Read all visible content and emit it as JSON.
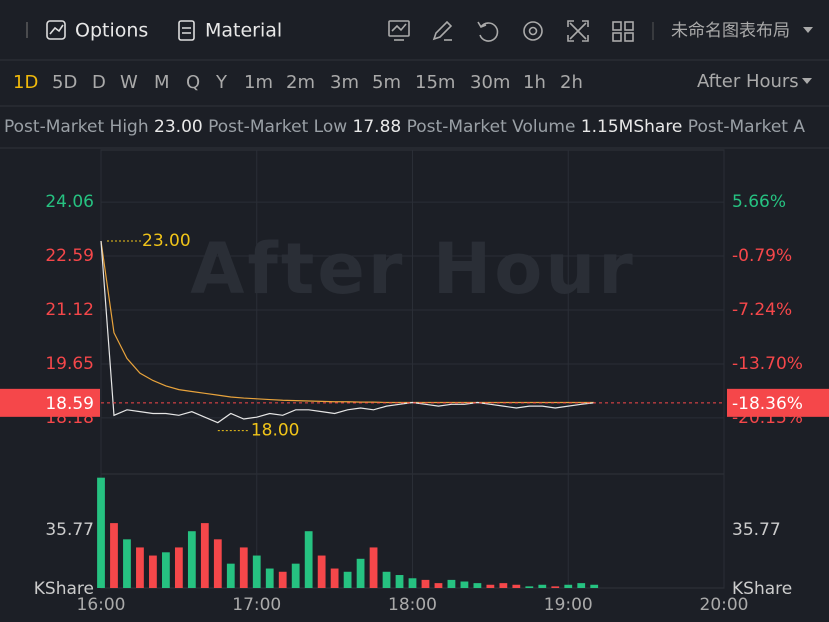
{
  "toolbar": {
    "items": [
      "Options",
      "Material"
    ],
    "layout_name": "未命名图表布局"
  },
  "timeframes": {
    "items": [
      "1D",
      "5D",
      "D",
      "W",
      "M",
      "Q",
      "Y",
      "1m",
      "2m",
      "3m",
      "5m",
      "15m",
      "30m",
      "1h",
      "2h"
    ],
    "selected": "1D",
    "session": "After Hours"
  },
  "stats": [
    {
      "label": "Post-Market High",
      "value": "23.00"
    },
    {
      "label": "Post-Market Low",
      "value": "17.88"
    },
    {
      "label": "Post-Market Volume",
      "value": "1.15MShare"
    },
    {
      "label": "Post-Market A"
    }
  ],
  "chart_data": {
    "type": "line",
    "watermark": "After Hour",
    "x": [
      "16:00",
      "16:05",
      "16:10",
      "16:15",
      "16:20",
      "16:25",
      "16:30",
      "16:35",
      "16:40",
      "16:45",
      "16:50",
      "16:55",
      "17:00",
      "17:05",
      "17:10",
      "17:15",
      "17:20",
      "17:25",
      "17:30",
      "17:35",
      "17:40",
      "17:45",
      "17:50",
      "17:55",
      "18:00",
      "18:05",
      "18:10",
      "18:15",
      "18:20",
      "18:25",
      "18:30",
      "18:35",
      "18:40",
      "18:45",
      "18:50",
      "18:55",
      "19:00",
      "19:05",
      "19:10"
    ],
    "xlim": [
      "16:00",
      "20:00"
    ],
    "xticks": [
      "16:00",
      "17:00",
      "18:00",
      "19:00",
      "20:00"
    ],
    "series": [
      {
        "name": "Price",
        "color": "#e6e6e6",
        "values": [
          23.0,
          18.25,
          18.4,
          18.35,
          18.3,
          18.3,
          18.25,
          18.35,
          18.2,
          18.05,
          18.3,
          18.15,
          18.2,
          18.3,
          18.25,
          18.4,
          18.4,
          18.35,
          18.3,
          18.4,
          18.45,
          18.4,
          18.5,
          18.55,
          18.6,
          18.55,
          18.5,
          18.55,
          18.55,
          18.6,
          18.55,
          18.5,
          18.45,
          18.5,
          18.5,
          18.45,
          18.5,
          18.55,
          18.59
        ]
      },
      {
        "name": "Average",
        "color": "#e8a33c",
        "values": [
          23.0,
          20.5,
          19.8,
          19.4,
          19.2,
          19.05,
          18.95,
          18.9,
          18.85,
          18.8,
          18.75,
          18.72,
          18.7,
          18.68,
          18.66,
          18.65,
          18.64,
          18.63,
          18.62,
          18.62,
          18.61,
          18.61,
          18.6,
          18.6,
          18.6,
          18.6,
          18.6,
          18.6,
          18.6,
          18.6,
          18.6,
          18.6,
          18.6,
          18.6,
          18.6,
          18.6,
          18.6,
          18.6,
          18.6
        ]
      }
    ],
    "ylim": [
      16.76,
      25.48
    ],
    "yticks": [
      24.06,
      22.59,
      21.12,
      19.65,
      18.18
    ],
    "y2lim": [
      -26.39,
      11.9
    ],
    "y2ticks": [
      {
        "value": 5.66,
        "label": "5.66%"
      },
      {
        "value": -0.79,
        "label": "-0.79%"
      },
      {
        "value": -7.24,
        "label": "-7.24%"
      },
      {
        "value": -13.7,
        "label": "-13.70%"
      },
      {
        "value": -20.15,
        "label": "-20.15%"
      }
    ],
    "last_price": 18.59,
    "last_change": "-18.36%",
    "high_label": "23.00",
    "low_label": "18.00",
    "up_color": "#26c281",
    "down_color": "#f5474a",
    "volume": {
      "values": [
        68,
        40,
        30,
        25,
        20,
        22,
        25,
        35,
        40,
        30,
        15,
        25,
        20,
        12,
        10,
        15,
        35,
        20,
        12,
        10,
        18,
        25,
        10,
        8,
        6,
        5,
        3,
        5,
        4,
        3,
        2,
        3,
        2,
        1,
        2,
        1,
        2,
        3,
        2
      ],
      "ylim": [
        0,
        67.8
      ],
      "yticks": [
        35.77
      ],
      "unit": "KShare"
    }
  }
}
